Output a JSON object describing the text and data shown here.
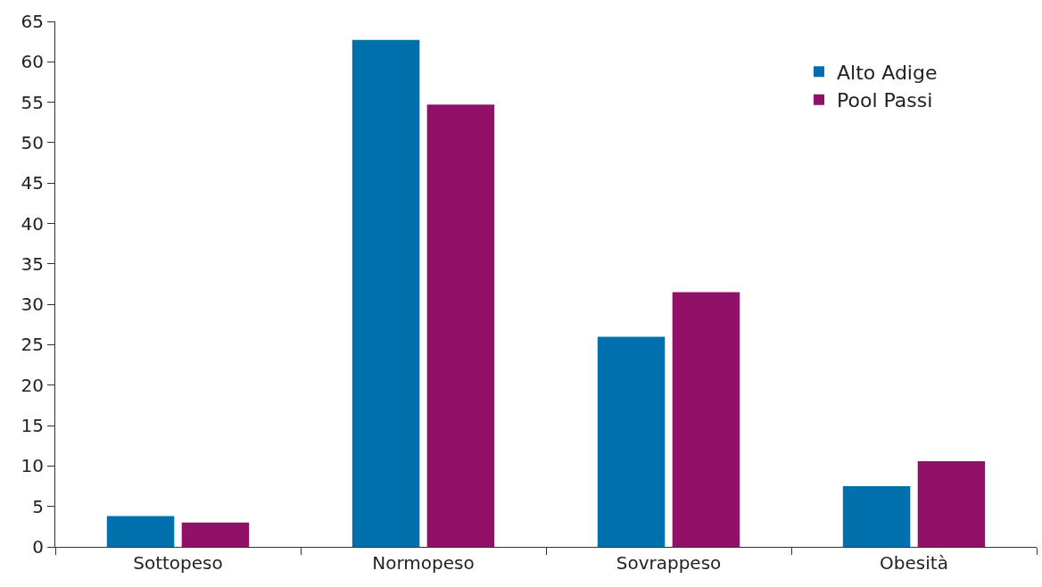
{
  "chart_data": {
    "type": "bar",
    "categories": [
      "Sottopeso",
      "Normopeso",
      "Sovrappeso",
      "Obesità"
    ],
    "series": [
      {
        "name": "Alto Adige",
        "color": "#0070ad",
        "values": [
          3.8,
          62.7,
          26,
          7.5
        ]
      },
      {
        "name": "Pool Passi",
        "color": "#921168",
        "values": [
          3,
          54.7,
          31.5,
          10.6
        ]
      }
    ],
    "ylim": [
      0,
      65
    ],
    "yticks": [
      0,
      5,
      10,
      15,
      20,
      25,
      30,
      35,
      40,
      45,
      50,
      55,
      60,
      65
    ],
    "grid": false,
    "legend": "top right"
  }
}
